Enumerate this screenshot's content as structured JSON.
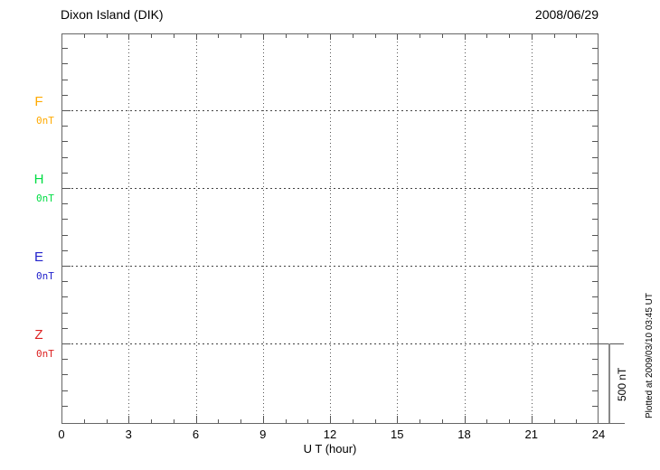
{
  "header": {
    "station_title": "Dixon Island (DIK)",
    "date": "2008/06/29"
  },
  "chart_data": {
    "type": "line",
    "title": "Dixon Island (DIK)",
    "date": "2008/06/29",
    "xlabel": "U T (hour)",
    "xlim": [
      0,
      24
    ],
    "x_ticks": [
      0,
      3,
      6,
      9,
      12,
      15,
      18,
      21,
      24
    ],
    "x_minor_tick_interval_hours": 1,
    "grid": "dotted vertical lines every 3 hours; dotted horizontal line at each channel baseline",
    "legend_position": "left-of-plot channel labels",
    "channels": [
      {
        "name": "F",
        "baseline_label": "0nT",
        "color": "#FFAA00"
      },
      {
        "name": "H",
        "baseline_label": "0nT",
        "color": "#00DD44"
      },
      {
        "name": "E",
        "baseline_label": "0nT",
        "color": "#2222CC"
      },
      {
        "name": "Z",
        "baseline_label": "0nT",
        "color": "#DD2222"
      }
    ],
    "series": [
      {
        "name": "F",
        "values": []
      },
      {
        "name": "H",
        "values": []
      },
      {
        "name": "E",
        "values": []
      },
      {
        "name": "Z",
        "values": []
      }
    ],
    "note": "no data traces plotted (empty magnetogram grid)",
    "minor_tick_nT": 100,
    "scale_bar": {
      "label": "500 nT"
    },
    "footnote": "Plotted at 2009/03/10 03:45 UT"
  }
}
